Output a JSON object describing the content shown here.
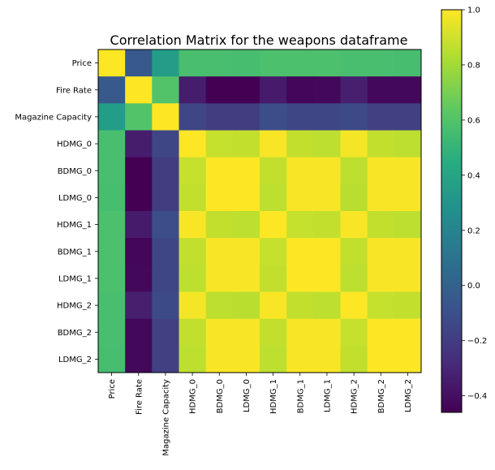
{
  "chart_data": {
    "type": "heatmap",
    "title": "Correlation Matrix for the weapons dataframe",
    "xlabel": "",
    "ylabel": "",
    "labels": [
      "Price",
      "Fire Rate",
      "Magazine Capacity",
      "HDMG_0",
      "BDMG_0",
      "LDMG_0",
      "HDMG_1",
      "BDMG_1",
      "LDMG_1",
      "HDMG_2",
      "BDMG_2",
      "LDMG_2"
    ],
    "colormap": "viridis",
    "vmin": -0.46,
    "vmax": 1.0,
    "colorbar_ticks": [
      1.0,
      0.8,
      0.6,
      0.4,
      0.2,
      0.0,
      -0.2,
      -0.4
    ],
    "colorbar_tick_labels": [
      "1.0",
      "0.8",
      "0.6",
      "0.4",
      "0.2",
      "0.0",
      "−0.2",
      "−0.4"
    ],
    "matrix": [
      [
        1.0,
        -0.05,
        0.35,
        0.57,
        0.57,
        0.56,
        0.58,
        0.58,
        0.58,
        0.57,
        0.57,
        0.56
      ],
      [
        -0.05,
        1.0,
        0.6,
        -0.34,
        -0.46,
        -0.46,
        -0.35,
        -0.44,
        -0.43,
        -0.33,
        -0.43,
        -0.43
      ],
      [
        0.35,
        0.6,
        1.0,
        -0.15,
        -0.2,
        -0.2,
        -0.11,
        -0.15,
        -0.15,
        -0.13,
        -0.18,
        -0.18
      ],
      [
        0.57,
        -0.34,
        -0.15,
        1.0,
        0.88,
        0.87,
        0.99,
        0.87,
        0.86,
        0.98,
        0.87,
        0.86
      ],
      [
        0.57,
        -0.46,
        -0.2,
        0.88,
        1.0,
        1.0,
        0.87,
        0.99,
        0.99,
        0.86,
        0.99,
        0.99
      ],
      [
        0.56,
        -0.46,
        -0.2,
        0.87,
        1.0,
        1.0,
        0.86,
        0.99,
        0.99,
        0.85,
        0.99,
        0.99
      ],
      [
        0.58,
        -0.35,
        -0.11,
        0.99,
        0.87,
        0.86,
        1.0,
        0.88,
        0.87,
        0.99,
        0.87,
        0.86
      ],
      [
        0.58,
        -0.44,
        -0.15,
        0.87,
        0.99,
        0.99,
        0.88,
        1.0,
        1.0,
        0.87,
        0.99,
        0.99
      ],
      [
        0.58,
        -0.43,
        -0.15,
        0.86,
        0.99,
        0.99,
        0.87,
        1.0,
        1.0,
        0.86,
        0.99,
        0.99
      ],
      [
        0.57,
        -0.33,
        -0.13,
        0.98,
        0.86,
        0.85,
        0.99,
        0.87,
        0.86,
        1.0,
        0.88,
        0.87
      ],
      [
        0.57,
        -0.43,
        -0.18,
        0.87,
        0.99,
        0.99,
        0.87,
        0.99,
        0.99,
        0.88,
        1.0,
        1.0
      ],
      [
        0.56,
        -0.43,
        -0.18,
        0.86,
        0.99,
        0.99,
        0.86,
        0.99,
        0.99,
        0.87,
        1.0,
        1.0
      ]
    ]
  }
}
